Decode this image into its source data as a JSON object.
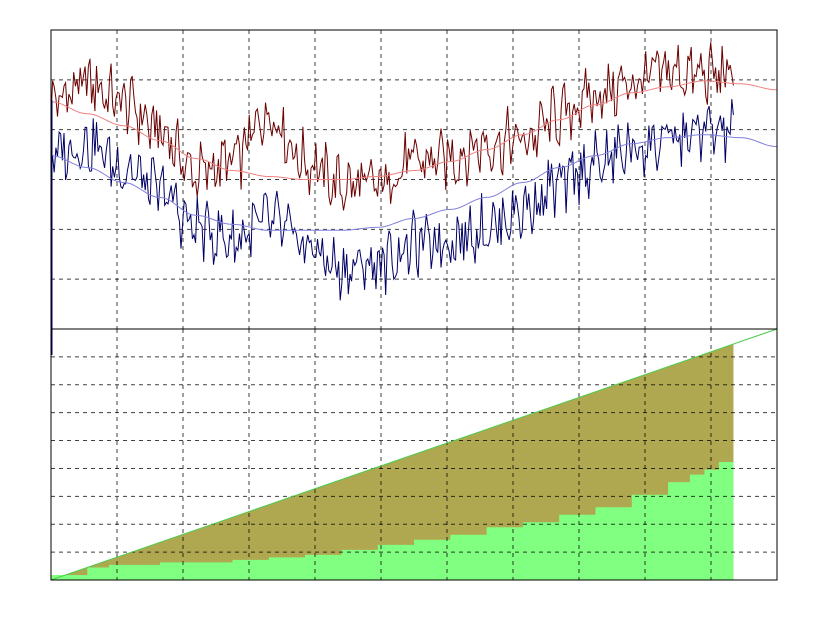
{
  "chart_data": [
    {
      "type": "line",
      "title": "",
      "xlabel": "",
      "ylabel": "",
      "xlim": [
        0,
        100
      ],
      "ylim": [
        0,
        100
      ],
      "grid": true,
      "legend": "none",
      "series": [
        {
          "color": "#6b0000",
          "style": "noisy",
          "x": [
            0,
            5,
            10,
            15,
            20,
            25,
            30,
            35,
            40,
            45,
            50,
            55,
            60,
            65,
            70,
            75,
            80,
            85,
            90,
            95,
            100
          ],
          "y": [
            76,
            82,
            76,
            66,
            52,
            56,
            72,
            56,
            48,
            48,
            56,
            57,
            62,
            63,
            71,
            78,
            82,
            86,
            85,
            85,
            82
          ]
        },
        {
          "color": "#f08080",
          "style": "smooth",
          "x": [
            0,
            5,
            10,
            15,
            20,
            25,
            30,
            35,
            40,
            45,
            50,
            55,
            60,
            65,
            70,
            75,
            80,
            85,
            90,
            95,
            100
          ],
          "y": [
            76,
            72,
            68,
            63,
            57,
            53,
            51,
            50,
            50,
            51,
            53,
            56,
            60,
            65,
            70,
            75,
            79,
            81,
            83,
            82,
            80
          ]
        },
        {
          "color": "#000066",
          "style": "noisy",
          "x": [
            0,
            5,
            10,
            15,
            20,
            25,
            30,
            35,
            40,
            45,
            50,
            55,
            60,
            65,
            70,
            75,
            80,
            85,
            90,
            95,
            100
          ],
          "y": [
            58,
            62,
            54,
            46,
            34,
            30,
            36,
            28,
            20,
            22,
            28,
            30,
            34,
            40,
            48,
            55,
            60,
            63,
            66,
            66,
            66
          ]
        },
        {
          "color": "#8080e0",
          "style": "smooth",
          "x": [
            0,
            5,
            10,
            15,
            20,
            25,
            30,
            35,
            40,
            45,
            50,
            55,
            60,
            65,
            70,
            75,
            80,
            85,
            90,
            95,
            100
          ],
          "y": [
            58,
            54,
            49,
            44,
            38,
            35,
            33,
            33,
            33,
            34,
            37,
            40,
            44,
            49,
            54,
            58,
            62,
            64,
            65,
            64,
            61
          ]
        }
      ]
    },
    {
      "type": "area",
      "title": "",
      "xlabel": "",
      "ylabel": "",
      "xlim": [
        0,
        100
      ],
      "ylim": [
        0,
        100
      ],
      "grid": true,
      "legend": "none",
      "series": [
        {
          "color": "#b0a850",
          "x": [
            0,
            94
          ],
          "y": [
            0,
            94
          ]
        },
        {
          "color": "#80ff80",
          "step": true,
          "x": [
            0,
            5,
            8,
            12,
            15,
            20,
            25,
            30,
            35,
            40,
            45,
            50,
            55,
            60,
            65,
            70,
            75,
            80,
            85,
            88,
            90,
            92,
            94
          ],
          "y": [
            2,
            5,
            6,
            6,
            7,
            7,
            8,
            9,
            10,
            12,
            14,
            16,
            18,
            21,
            23,
            26,
            29,
            34,
            39,
            42,
            44,
            47,
            47
          ]
        },
        {
          "color": "#4ccc4c",
          "x": [
            0,
            100
          ],
          "y": [
            0,
            100
          ]
        }
      ]
    }
  ]
}
